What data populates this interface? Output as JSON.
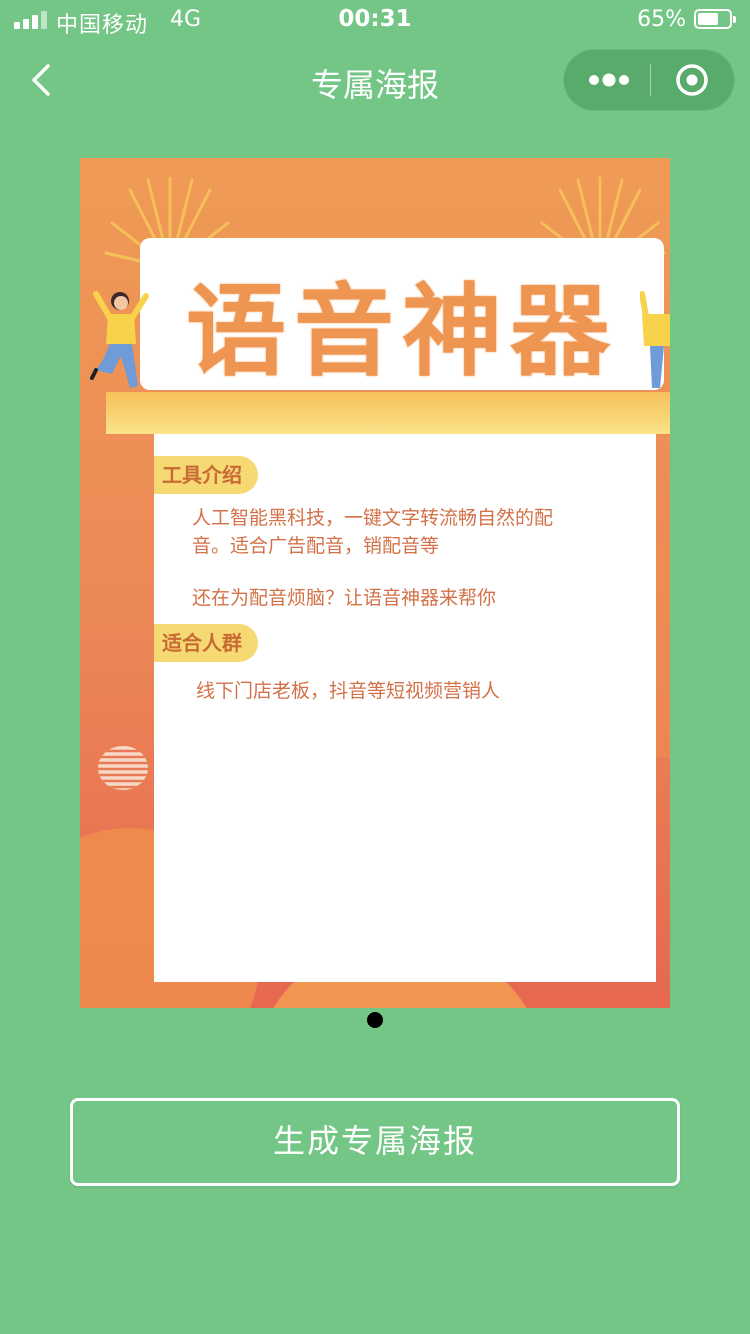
{
  "status_bar": {
    "carrier": "中国移动",
    "network": "4G",
    "time": "00:31",
    "battery_percent": "65%",
    "battery_level": 0.65
  },
  "nav": {
    "title": "专属海报",
    "back_icon": "chevron-left-icon",
    "more_icon": "more-dots-icon",
    "close_icon": "target-circle-icon"
  },
  "poster": {
    "title": "语音神器",
    "sections": [
      {
        "tag": "工具介绍",
        "lines": [
          "人工智能黑科技，一键文字转流畅自然的配",
          "音。适合广告配音，销配音等",
          "还在为配音烦脑？让语音神器来帮你"
        ]
      },
      {
        "tag": "适合人群",
        "lines": [
          "线下门店老板，抖音等短视频营销人"
        ]
      }
    ],
    "colors": {
      "background_top": "#ef9b56",
      "background_bottom": "#e6684f",
      "title": "#ef9552",
      "tag_background": "#f6d973",
      "tag_text": "#c86a35",
      "body_text": "#d37148"
    }
  },
  "pager": {
    "count": 1,
    "active_index": 0
  },
  "actions": {
    "generate_label": "生成专属海报"
  },
  "colors": {
    "page_background": "#74c686",
    "accent": "#ffffff"
  }
}
